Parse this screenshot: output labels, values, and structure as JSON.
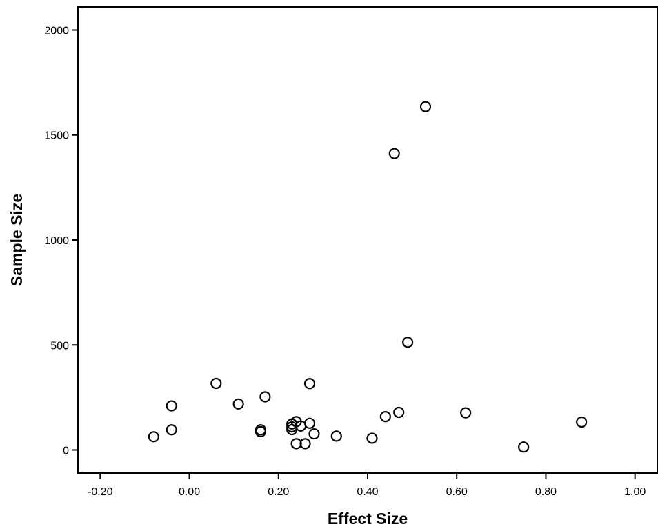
{
  "chart_data": {
    "type": "scatter",
    "title": "",
    "xlabel": "Effect Size",
    "ylabel": "Sample Size",
    "xlim": [
      -0.25,
      1.05
    ],
    "ylim": [
      -110,
      2110
    ],
    "x_ticks": [
      -0.2,
      0.0,
      0.2,
      0.4,
      0.6,
      0.8,
      1.0
    ],
    "x_tick_labels": [
      "-0.20",
      "0.00",
      "0.20",
      "0.40",
      "0.60",
      "0.80",
      "1.00"
    ],
    "y_ticks": [
      0,
      500,
      1000,
      1500,
      2000
    ],
    "y_tick_labels": [
      "0",
      "500",
      "1000",
      "1500",
      "2000"
    ],
    "grid": false,
    "legend": "none",
    "marker": "open-circle",
    "series": [
      {
        "points": [
          {
            "x": 0.53,
            "y": 1635
          },
          {
            "x": 0.46,
            "y": 1412
          },
          {
            "x": 0.49,
            "y": 513
          },
          {
            "x": 0.06,
            "y": 317
          },
          {
            "x": 0.27,
            "y": 316
          },
          {
            "x": 0.17,
            "y": 253
          },
          {
            "x": 0.11,
            "y": 219
          },
          {
            "x": -0.04,
            "y": 210
          },
          {
            "x": 0.47,
            "y": 179
          },
          {
            "x": 0.62,
            "y": 177
          },
          {
            "x": 0.44,
            "y": 159
          },
          {
            "x": 0.88,
            "y": 133
          },
          {
            "x": 0.24,
            "y": 135
          },
          {
            "x": 0.23,
            "y": 124
          },
          {
            "x": 0.27,
            "y": 127
          },
          {
            "x": 0.25,
            "y": 114
          },
          {
            "x": 0.23,
            "y": 110
          },
          {
            "x": 0.23,
            "y": 97
          },
          {
            "x": 0.16,
            "y": 96
          },
          {
            "x": 0.16,
            "y": 87
          },
          {
            "x": -0.04,
            "y": 96
          },
          {
            "x": 0.28,
            "y": 77
          },
          {
            "x": 0.33,
            "y": 66
          },
          {
            "x": -0.08,
            "y": 63
          },
          {
            "x": 0.41,
            "y": 56
          },
          {
            "x": 0.24,
            "y": 30
          },
          {
            "x": 0.26,
            "y": 30
          },
          {
            "x": 0.75,
            "y": 14
          }
        ]
      }
    ]
  }
}
